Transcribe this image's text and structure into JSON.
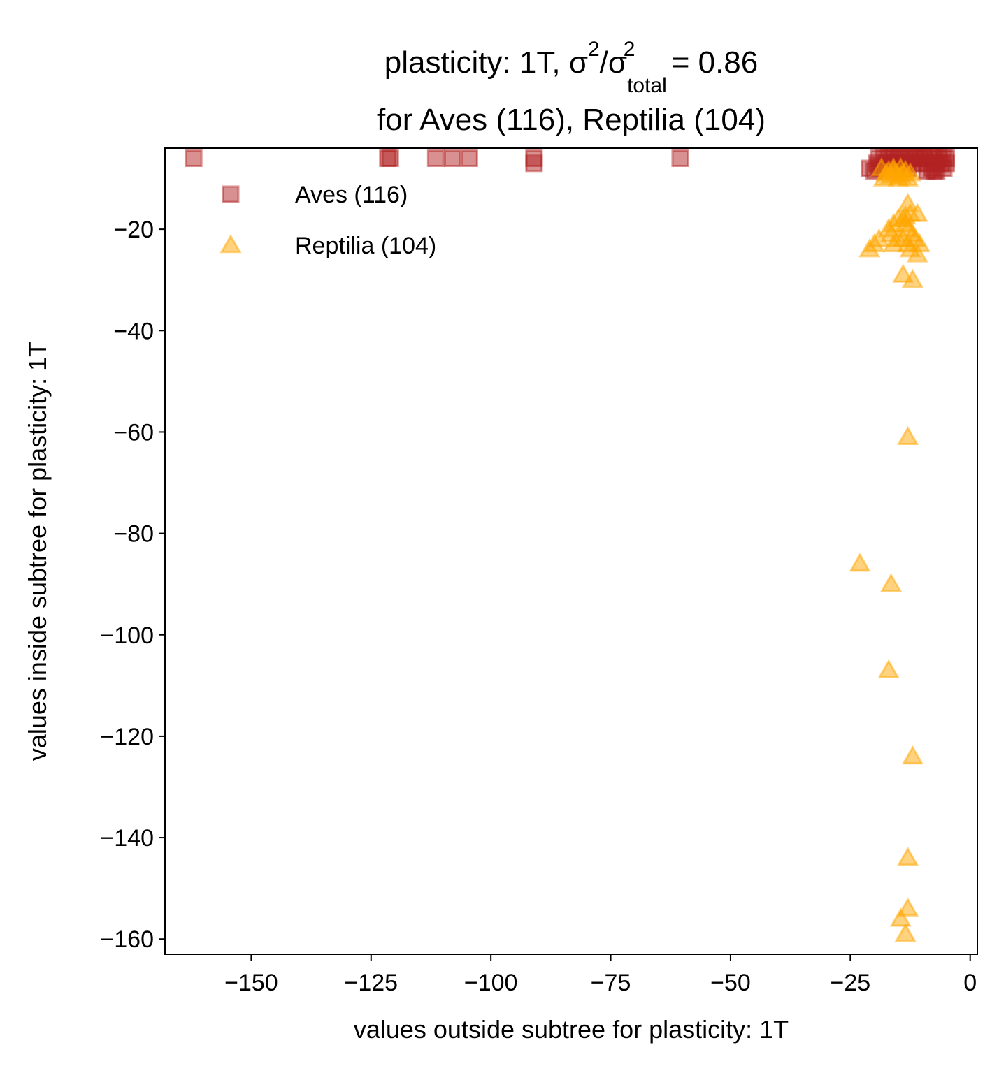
{
  "colors": {
    "aves": "#b22222",
    "reptilia": "#ffa500",
    "axis": "#000000",
    "background": "#ffffff"
  },
  "chart_data": {
    "type": "scatter",
    "title": {
      "line1_prefix": "plasticity: 1T, σ",
      "sup1": "2",
      "mid": "/σ",
      "sub": "total",
      "sup2": "2",
      "line1_suffix": " =  0.86",
      "line2": "for Aves (116), Reptilia (104)"
    },
    "xlabel": "values outside subtree for plasticity: 1T",
    "ylabel": "values inside subtree for plasticity: 1T",
    "xlim": [
      -168,
      1.5
    ],
    "ylim": [
      -163,
      -4
    ],
    "xticks": [
      {
        "value": -150,
        "label": "−150"
      },
      {
        "value": -125,
        "label": "−125"
      },
      {
        "value": -100,
        "label": "−100"
      },
      {
        "value": -75,
        "label": "−75"
      },
      {
        "value": -50,
        "label": "−50"
      },
      {
        "value": -25,
        "label": "−25"
      },
      {
        "value": 0,
        "label": "0"
      }
    ],
    "yticks": [
      {
        "value": -20,
        "label": "−20"
      },
      {
        "value": -40,
        "label": "−40"
      },
      {
        "value": -60,
        "label": "−60"
      },
      {
        "value": -80,
        "label": "−80"
      },
      {
        "value": -100,
        "label": "−100"
      },
      {
        "value": -120,
        "label": "−120"
      },
      {
        "value": -140,
        "label": "−140"
      },
      {
        "value": -160,
        "label": "−160"
      }
    ],
    "legend": {
      "placement": "upper-left",
      "entries": [
        {
          "series": "aves",
          "label": "Aves (116)",
          "marker": "square"
        },
        {
          "series": "reptilia",
          "label": "Reptilia (104)",
          "marker": "triangle"
        }
      ]
    },
    "grid": false,
    "series": [
      {
        "name": "Aves (116)",
        "key": "aves",
        "marker": "square",
        "alpha": 0.5,
        "points": [
          [
            -162,
            -6
          ],
          [
            -121.5,
            -6
          ],
          [
            -121,
            -6
          ],
          [
            -111.5,
            -6
          ],
          [
            -108,
            -6
          ],
          [
            -104.5,
            -6
          ],
          [
            -91,
            -6
          ],
          [
            -91,
            -7
          ],
          [
            -60.5,
            -6
          ],
          [
            -21,
            -8
          ],
          [
            -20,
            -8.5
          ],
          [
            -19.5,
            -7
          ],
          [
            -19,
            -6
          ],
          [
            -18.5,
            -8
          ],
          [
            -18,
            -6
          ],
          [
            -17.5,
            -7
          ],
          [
            -17,
            -6
          ],
          [
            -16.5,
            -8
          ],
          [
            -16,
            -6
          ],
          [
            -15.5,
            -7
          ],
          [
            -15,
            -6
          ],
          [
            -14.5,
            -6
          ],
          [
            -14,
            -7
          ],
          [
            -13.5,
            -6
          ],
          [
            -13,
            -8
          ],
          [
            -12.5,
            -6
          ],
          [
            -12,
            -7
          ],
          [
            -11.5,
            -6
          ],
          [
            -11,
            -6
          ],
          [
            -10.5,
            -7
          ],
          [
            -10,
            -6
          ],
          [
            -9.5,
            -6
          ],
          [
            -9,
            -7
          ],
          [
            -8.5,
            -6
          ],
          [
            -8,
            -8
          ],
          [
            -7.5,
            -6
          ],
          [
            -7,
            -7
          ],
          [
            -7,
            -8.5
          ],
          [
            -6.5,
            -6
          ],
          [
            -6,
            -7
          ],
          [
            -5.5,
            -6
          ],
          [
            -5.5,
            -8
          ],
          [
            -5,
            -7
          ],
          [
            -5,
            -6
          ],
          [
            -9,
            -8.5
          ],
          [
            -7.5,
            -8.5
          ],
          [
            -19,
            -7.5
          ],
          [
            -16,
            -7
          ],
          [
            -14,
            -8
          ]
        ]
      },
      {
        "name": "Reptilia (104)",
        "key": "reptilia",
        "marker": "triangle",
        "alpha": 0.5,
        "points": [
          [
            -18.5,
            -8
          ],
          [
            -18,
            -10
          ],
          [
            -17.5,
            -9
          ],
          [
            -17,
            -8.5
          ],
          [
            -16.5,
            -9.5
          ],
          [
            -16,
            -8.5
          ],
          [
            -15.5,
            -9
          ],
          [
            -15,
            -10
          ],
          [
            -14.5,
            -8
          ],
          [
            -14,
            -9
          ],
          [
            -13.5,
            -8.5
          ],
          [
            -13,
            -10
          ],
          [
            -12.5,
            -9
          ],
          [
            -16,
            -8
          ],
          [
            -14.5,
            -9.5
          ],
          [
            -13,
            -15
          ],
          [
            -12.5,
            -17
          ],
          [
            -11,
            -17
          ],
          [
            -13.5,
            -17.5
          ],
          [
            -14,
            -18
          ],
          [
            -15,
            -18
          ],
          [
            -16,
            -19
          ],
          [
            -17,
            -20
          ],
          [
            -16.5,
            -21
          ],
          [
            -13,
            -20
          ],
          [
            -12,
            -21
          ],
          [
            -11.5,
            -22
          ],
          [
            -10.5,
            -23
          ],
          [
            -11,
            -25
          ],
          [
            -12.5,
            -24
          ],
          [
            -14,
            -22
          ],
          [
            -15,
            -22
          ],
          [
            -13.5,
            -19
          ],
          [
            -19,
            -22
          ],
          [
            -20,
            -23
          ],
          [
            -21,
            -24
          ],
          [
            -14,
            -29
          ],
          [
            -12,
            -30
          ],
          [
            -16,
            -23
          ],
          [
            -13,
            -23
          ],
          [
            -13,
            -61
          ],
          [
            -23,
            -86
          ],
          [
            -16.5,
            -90
          ],
          [
            -17,
            -107
          ],
          [
            -12,
            -124
          ],
          [
            -13,
            -144
          ],
          [
            -13,
            -154
          ],
          [
            -14.5,
            -156
          ],
          [
            -13.5,
            -159
          ]
        ]
      }
    ]
  }
}
